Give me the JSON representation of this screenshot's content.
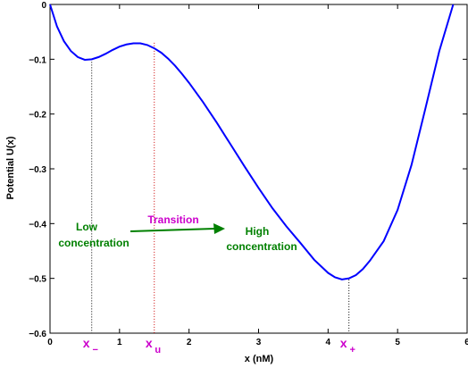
{
  "chart_data": {
    "type": "line",
    "xlabel": "x (nM)",
    "ylabel": "Potential  U(x)",
    "xlim": [
      0,
      6
    ],
    "ylim": [
      -0.6,
      0
    ],
    "xticks": [
      0,
      1,
      2,
      3,
      4,
      5,
      6
    ],
    "yticks": [
      0,
      -0.1,
      -0.2,
      -0.3,
      -0.4,
      -0.5,
      -0.6
    ],
    "xtick_labels": [
      "0",
      "1",
      "2",
      "3",
      "4",
      "5",
      "6"
    ],
    "ytick_labels": [
      "0",
      "−0.1",
      "−0.2",
      "−0.3",
      "−0.4",
      "−0.5",
      "−0.6"
    ],
    "grid": false,
    "series": [
      {
        "color": "#0000ff",
        "x": [
          0,
          0.1,
          0.2,
          0.3,
          0.4,
          0.5,
          0.6,
          0.7,
          0.8,
          0.9,
          1.0,
          1.1,
          1.2,
          1.3,
          1.4,
          1.5,
          1.6,
          1.7,
          1.8,
          1.9,
          2.0,
          2.2,
          2.4,
          2.6,
          2.8,
          3.0,
          3.2,
          3.4,
          3.6,
          3.8,
          4.0,
          4.1,
          4.2,
          4.3,
          4.4,
          4.5,
          4.6,
          4.8,
          5.0,
          5.2,
          5.4,
          5.6,
          5.8
        ],
        "y": [
          0,
          -0.04,
          -0.067,
          -0.085,
          -0.096,
          -0.101,
          -0.1,
          -0.096,
          -0.09,
          -0.083,
          -0.077,
          -0.073,
          -0.071,
          -0.071,
          -0.074,
          -0.08,
          -0.088,
          -0.099,
          -0.112,
          -0.127,
          -0.143,
          -0.178,
          -0.216,
          -0.256,
          -0.296,
          -0.335,
          -0.372,
          -0.405,
          -0.435,
          -0.466,
          -0.49,
          -0.498,
          -0.502,
          -0.5,
          -0.494,
          -0.483,
          -0.468,
          -0.432,
          -0.375,
          -0.293,
          -0.19,
          -0.085,
          0
        ]
      }
    ],
    "markers": [
      {
        "label": "x",
        "sub": "−",
        "x": 0.6,
        "y_top": -0.1
      },
      {
        "label": "x",
        "sub": "u",
        "x": 1.5,
        "y_top": -0.07
      },
      {
        "label": "x",
        "sub": "+",
        "x": 4.3,
        "y_top": -0.502
      }
    ],
    "annotations": {
      "low_line1": "Low",
      "low_line2": "concentration",
      "transition": "Transition",
      "high_line1": "High",
      "high_line2": "concentration"
    },
    "colors": {
      "curve": "#0000ff",
      "green": "#008000",
      "magenta": "#cc00cc",
      "red_dots": "#cc0000",
      "black_dots": "#000000"
    }
  }
}
